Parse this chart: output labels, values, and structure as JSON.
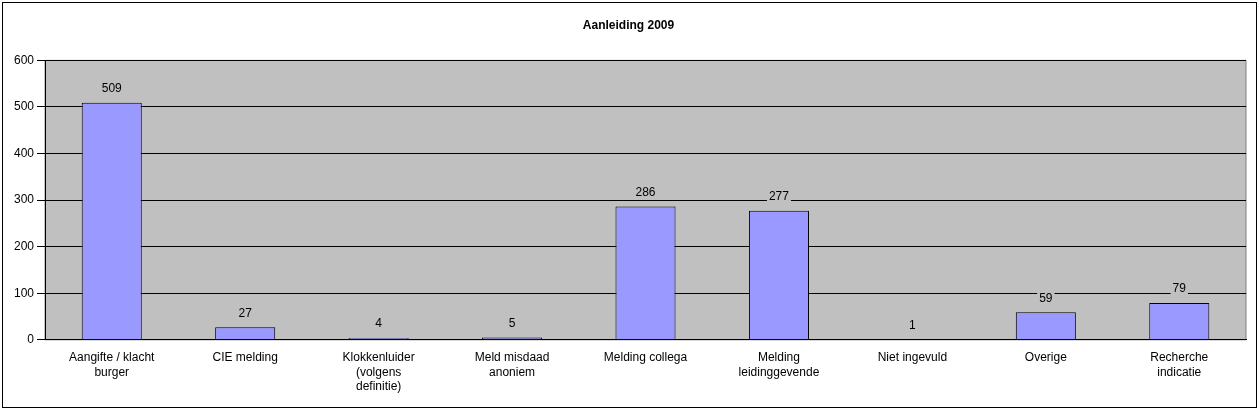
{
  "chart_data": {
    "type": "bar",
    "title": "Aanleiding 2009",
    "categories": [
      "Aangifte / klacht burger",
      "CIE melding",
      "Klokkenluider (volgens definitie)",
      "Meld misdaad anoniem",
      "Melding collega",
      "Melding leidinggevende",
      "Niet ingevuld",
      "Overige",
      "Recherche indicatie"
    ],
    "values": [
      509,
      27,
      4,
      5,
      286,
      277,
      1,
      59,
      79
    ],
    "color": "#9999ff",
    "ylim": [
      0,
      600
    ],
    "yticks": [
      0,
      100,
      200,
      300,
      400,
      500,
      600
    ],
    "grid": "y",
    "data_labels": true
  }
}
